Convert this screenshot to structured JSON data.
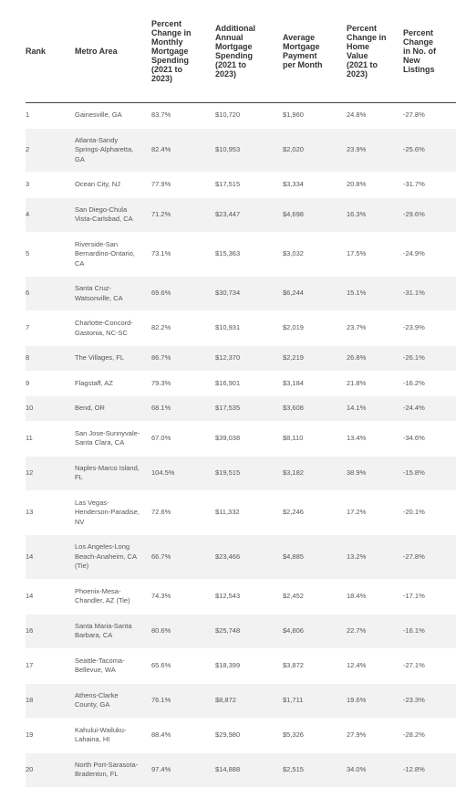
{
  "table": {
    "headers": [
      "Rank",
      "Metro Area",
      "Percent Change in Monthly Mortgage Spending (2021 to 2023)",
      "Additional Annual Mortgage Spending (2021 to 2023)",
      "Average Mortgage Payment per Month",
      "Percent Change in Home Value (2021 to 2023)",
      "Percent Change in No. of New Listings"
    ],
    "rows": [
      [
        "1",
        "Gainesville, GA",
        "83.7%",
        "$10,720",
        "$1,960",
        "24.8%",
        "-27.8%"
      ],
      [
        "2",
        "Atlanta-Sandy Springs-Alpharetta, GA",
        "82.4%",
        "$10,953",
        "$2,020",
        "23.9%",
        "-25.6%"
      ],
      [
        "3",
        "Ocean City, NJ",
        "77.9%",
        "$17,515",
        "$3,334",
        "20.8%",
        "-31.7%"
      ],
      [
        "4",
        "San Diego-Chula Vista-Carlsbad, CA",
        "71.2%",
        "$23,447",
        "$4,698",
        "16.3%",
        "-29.6%"
      ],
      [
        "5",
        "Riverside-San Bernardino-Ontario, CA",
        "73.1%",
        "$15,363",
        "$3,032",
        "17.5%",
        "-24.9%"
      ],
      [
        "6",
        "Santa Cruz-Watsonville, CA",
        "69.6%",
        "$30,734",
        "$6,244",
        "15.1%",
        "-31.1%"
      ],
      [
        "7",
        "Charlotte-Concord-Gastonia, NC-SC",
        "82.2%",
        "$10,931",
        "$2,019",
        "23.7%",
        "-23.9%"
      ],
      [
        "8",
        "The Villages, FL",
        "86.7%",
        "$12,370",
        "$2,219",
        "26.8%",
        "-26.1%"
      ],
      [
        "9",
        "Flagstaff, AZ",
        "79.3%",
        "$16,901",
        "$3,184",
        "21.8%",
        "-16.2%"
      ],
      [
        "10",
        "Bend, OR",
        "68.1%",
        "$17,535",
        "$3,608",
        "14.1%",
        "-24.4%"
      ],
      [
        "11",
        "San Jose-Sunnyvale-Santa Clara, CA",
        "67.0%",
        "$39,038",
        "$8,110",
        "13.4%",
        "-34.6%"
      ],
      [
        "12",
        "Naples-Marco Island, FL",
        "104.5%",
        "$19,515",
        "$3,182",
        "38.9%",
        "-15.8%"
      ],
      [
        "13",
        "Las Vegas-Henderson-Paradise, NV",
        "72.6%",
        "$11,332",
        "$2,246",
        "17.2%",
        "-20.1%"
      ],
      [
        "14",
        "Los Angeles-Long Beach-Anaheim, CA (Tie)",
        "66.7%",
        "$23,466",
        "$4,885",
        "13.2%",
        "-27.8%"
      ],
      [
        "14",
        "Phoenix-Mesa-Chandler, AZ (Tie)",
        "74.3%",
        "$12,543",
        "$2,452",
        "18.4%",
        "-17.1%"
      ],
      [
        "16",
        "Santa Maria-Santa Barbara, CA",
        "80.6%",
        "$25,748",
        "$4,806",
        "22.7%",
        "-16.1%"
      ],
      [
        "17",
        "Seattle-Tacoma-Bellevue, WA",
        "65.6%",
        "$18,399",
        "$3,872",
        "12.4%",
        "-27.1%"
      ],
      [
        "18",
        "Athens-Clarke County, GA",
        "76.1%",
        "$8,872",
        "$1,711",
        "19.6%",
        "-23.3%"
      ],
      [
        "19",
        "Kahului-Wailuku-Lahaina, HI",
        "88.4%",
        "$29,980",
        "$5,326",
        "27.9%",
        "-28.2%"
      ],
      [
        "20",
        "North Port-Sarasota-Bradenton, FL",
        "97.4%",
        "$14,888",
        "$2,515",
        "34.0%",
        "-12.8%"
      ]
    ]
  }
}
